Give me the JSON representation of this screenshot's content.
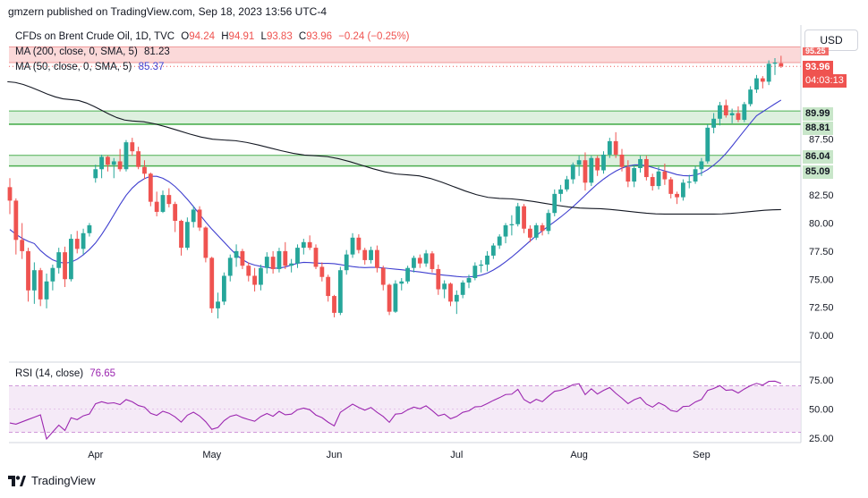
{
  "header": {
    "published": "gmzern published on TradingView.com, Sep 18, 2023 13:56 UTC-4"
  },
  "currency_button": "USD",
  "legend": {
    "symbol": "CFDs on Brent Crude Oil, 1D, TVC",
    "o_label": "O",
    "o": "94.24",
    "h_label": "H",
    "h": "94.91",
    "l_label": "L",
    "l": "93.83",
    "c_label": "C",
    "c": "93.96",
    "change": "−0.24 (−0.25%)",
    "ma200_label": "MA (200, close, 0, SMA, 5)",
    "ma200_value": "81.23",
    "ma50_label": "MA (50, close, 0, SMA, 5)",
    "ma50_value": "85.37",
    "rsi_label": "RSI (14, close)",
    "rsi_value": "76.65"
  },
  "price_tags": {
    "last": "93.96",
    "countdown": "04:03:13",
    "top_partial": "95.25",
    "zone1_top": "89.99",
    "zone1_bottom": "88.81",
    "zone2_top": "86.04",
    "zone2_bottom": "85.09"
  },
  "footer": {
    "brand": "TradingView"
  },
  "colors": {
    "up": "#26a69a",
    "down": "#ef5350",
    "ma50": "#3f3fcf",
    "ma200": "#131722",
    "rsi": "#9c27b0",
    "zone_fill": "#c8e6c9",
    "zone_line": "#4caf50",
    "resistance_fill": "#fbd9d9"
  },
  "chart_data": {
    "type": "candlestick",
    "y_ticks": [
      70.0,
      72.5,
      75.0,
      77.5,
      80.0,
      82.5,
      85.0,
      87.5
    ],
    "y_tick_labels": [
      "70.00",
      "72.50",
      "75.00",
      "77.50",
      "80.00",
      "82.50",
      "",
      "87.50"
    ],
    "x_ticks": [
      {
        "label": "Apr",
        "index": 14
      },
      {
        "label": "May",
        "index": 33
      },
      {
        "label": "Jun",
        "index": 53
      },
      {
        "label": "Jul",
        "index": 73
      },
      {
        "label": "Aug",
        "index": 93
      },
      {
        "label": "Sep",
        "index": 113
      }
    ],
    "rsi_ticks": [
      25.0,
      50.0,
      75.0
    ],
    "rsi_bands": [
      30,
      70
    ],
    "zones": [
      {
        "top": 89.99,
        "bottom": 88.81
      },
      {
        "top": 86.04,
        "bottom": 85.09
      }
    ],
    "resistance_zone": {
      "top": 95.7,
      "bottom": 94.3
    },
    "last_price": 93.96,
    "candles": [
      [
        83.2,
        84.0,
        80.8,
        82.0
      ],
      [
        82.0,
        82.2,
        77.2,
        78.5
      ],
      [
        78.5,
        80.0,
        76.8,
        77.5
      ],
      [
        77.5,
        77.8,
        73.0,
        74.0
      ],
      [
        74.0,
        76.5,
        72.8,
        75.8
      ],
      [
        75.8,
        76.0,
        72.6,
        73.2
      ],
      [
        73.2,
        75.5,
        72.4,
        74.8
      ],
      [
        74.8,
        76.3,
        74.0,
        76.0
      ],
      [
        76.0,
        77.8,
        75.5,
        77.4
      ],
      [
        77.4,
        77.9,
        74.3,
        75.0
      ],
      [
        75.0,
        79.0,
        74.8,
        78.6
      ],
      [
        78.6,
        79.3,
        77.3,
        77.7
      ],
      [
        77.7,
        79.5,
        77.2,
        79.1
      ],
      [
        79.1,
        80.0,
        78.8,
        79.8
      ],
      [
        84.0,
        85.2,
        83.6,
        84.8
      ],
      [
        84.8,
        86.1,
        84.0,
        85.9
      ],
      [
        85.9,
        86.0,
        84.6,
        85.2
      ],
      [
        85.2,
        85.8,
        84.0,
        85.5
      ],
      [
        85.5,
        86.6,
        84.6,
        84.8
      ],
      [
        84.8,
        87.4,
        84.6,
        87.2
      ],
      [
        87.2,
        87.6,
        86.0,
        86.4
      ],
      [
        86.4,
        86.8,
        84.8,
        85.0
      ],
      [
        85.0,
        85.6,
        83.9,
        84.4
      ],
      [
        84.4,
        84.5,
        81.5,
        81.9
      ],
      [
        81.9,
        82.8,
        80.6,
        81.0
      ],
      [
        81.0,
        82.9,
        80.9,
        82.5
      ],
      [
        82.5,
        83.1,
        81.4,
        81.7
      ],
      [
        81.7,
        81.9,
        79.2,
        80.2
      ],
      [
        80.2,
        80.3,
        77.1,
        77.8
      ],
      [
        77.8,
        80.5,
        77.6,
        80.1
      ],
      [
        80.1,
        81.5,
        79.6,
        81.2
      ],
      [
        81.2,
        81.5,
        79.3,
        79.6
      ],
      [
        79.6,
        79.7,
        76.5,
        76.9
      ],
      [
        76.9,
        77.0,
        72.0,
        72.4
      ],
      [
        72.4,
        73.8,
        71.5,
        73.0
      ],
      [
        73.0,
        75.6,
        72.7,
        75.3
      ],
      [
        75.3,
        77.2,
        74.8,
        76.9
      ],
      [
        76.9,
        78.1,
        76.1,
        77.5
      ],
      [
        77.5,
        77.7,
        75.9,
        76.2
      ],
      [
        76.2,
        76.5,
        74.8,
        75.3
      ],
      [
        75.3,
        76.0,
        73.9,
        74.5
      ],
      [
        74.5,
        76.3,
        74.0,
        76.0
      ],
      [
        76.0,
        77.4,
        75.5,
        77.0
      ],
      [
        77.0,
        77.5,
        75.5,
        75.9
      ],
      [
        75.9,
        77.8,
        75.6,
        77.5
      ],
      [
        77.5,
        78.3,
        75.9,
        76.2
      ],
      [
        76.2,
        76.8,
        75.6,
        76.4
      ],
      [
        76.4,
        78.1,
        76.0,
        77.8
      ],
      [
        77.8,
        78.6,
        77.2,
        78.3
      ],
      [
        78.3,
        78.9,
        77.6,
        77.8
      ],
      [
        77.8,
        78.1,
        75.9,
        76.1
      ],
      [
        76.1,
        76.5,
        74.8,
        75.2
      ],
      [
        75.2,
        75.4,
        73.0,
        73.5
      ],
      [
        73.5,
        73.6,
        71.6,
        72.0
      ],
      [
        72.0,
        76.1,
        71.8,
        75.8
      ],
      [
        75.8,
        77.6,
        75.4,
        77.2
      ],
      [
        77.2,
        79.1,
        76.9,
        78.7
      ],
      [
        78.7,
        79.0,
        77.3,
        77.6
      ],
      [
        77.6,
        77.8,
        76.3,
        76.7
      ],
      [
        76.7,
        77.9,
        76.4,
        77.6
      ],
      [
        77.6,
        78.0,
        75.6,
        76.0
      ],
      [
        76.0,
        76.2,
        74.0,
        74.5
      ],
      [
        74.5,
        74.6,
        71.8,
        72.1
      ],
      [
        72.1,
        74.9,
        72.0,
        74.6
      ],
      [
        74.6,
        75.1,
        74.0,
        74.8
      ],
      [
        74.8,
        76.2,
        74.6,
        76.0
      ],
      [
        76.0,
        77.1,
        75.6,
        76.9
      ],
      [
        76.9,
        77.2,
        76.0,
        76.4
      ],
      [
        76.4,
        77.6,
        76.1,
        77.3
      ],
      [
        77.3,
        77.5,
        75.6,
        75.9
      ],
      [
        75.9,
        76.3,
        73.6,
        74.1
      ],
      [
        74.1,
        74.9,
        73.3,
        74.6
      ],
      [
        74.6,
        74.7,
        72.6,
        73.0
      ],
      [
        73.0,
        74.0,
        71.9,
        73.6
      ],
      [
        73.6,
        74.9,
        73.3,
        74.7
      ],
      [
        74.7,
        75.4,
        74.2,
        75.1
      ],
      [
        75.1,
        76.5,
        74.9,
        76.2
      ],
      [
        76.2,
        76.7,
        75.6,
        76.3
      ],
      [
        76.3,
        77.5,
        75.7,
        77.1
      ],
      [
        77.1,
        78.2,
        76.8,
        78.0
      ],
      [
        78.0,
        79.0,
        77.7,
        78.8
      ],
      [
        78.8,
        80.0,
        78.2,
        79.8
      ],
      [
        79.8,
        80.7,
        78.9,
        79.9
      ],
      [
        79.9,
        81.8,
        79.7,
        81.5
      ],
      [
        81.5,
        81.7,
        79.1,
        79.5
      ],
      [
        79.5,
        79.8,
        78.3,
        78.7
      ],
      [
        78.7,
        80.0,
        78.5,
        79.8
      ],
      [
        79.8,
        80.0,
        78.9,
        79.3
      ],
      [
        79.3,
        81.2,
        79.0,
        80.9
      ],
      [
        80.9,
        83.0,
        80.6,
        82.6
      ],
      [
        82.6,
        83.4,
        81.9,
        83.0
      ],
      [
        83.0,
        84.2,
        82.8,
        83.9
      ],
      [
        83.9,
        85.4,
        83.5,
        85.2
      ],
      [
        85.2,
        86.0,
        84.2,
        85.6
      ],
      [
        85.6,
        86.3,
        82.9,
        83.6
      ],
      [
        83.6,
        86.0,
        83.3,
        85.8
      ],
      [
        85.8,
        86.0,
        84.2,
        84.7
      ],
      [
        84.7,
        86.4,
        84.4,
        86.1
      ],
      [
        86.1,
        87.6,
        85.8,
        87.3
      ],
      [
        87.3,
        88.1,
        85.8,
        86.1
      ],
      [
        86.1,
        86.6,
        84.6,
        85.0
      ],
      [
        85.0,
        85.6,
        83.2,
        83.7
      ],
      [
        83.7,
        85.2,
        83.2,
        84.9
      ],
      [
        84.9,
        86.0,
        84.5,
        85.7
      ],
      [
        85.7,
        86.0,
        83.8,
        84.1
      ],
      [
        84.1,
        84.4,
        82.9,
        83.3
      ],
      [
        83.3,
        85.0,
        83.0,
        84.6
      ],
      [
        84.6,
        85.3,
        83.4,
        83.9
      ],
      [
        83.9,
        84.1,
        82.2,
        82.6
      ],
      [
        82.6,
        82.8,
        81.7,
        82.3
      ],
      [
        82.3,
        83.9,
        82.0,
        83.6
      ],
      [
        83.6,
        84.3,
        83.1,
        83.7
      ],
      [
        83.7,
        85.1,
        83.5,
        84.8
      ],
      [
        84.8,
        85.8,
        84.2,
        85.5
      ],
      [
        85.5,
        88.8,
        85.3,
        88.5
      ],
      [
        88.5,
        89.8,
        88.0,
        89.3
      ],
      [
        89.3,
        90.8,
        88.7,
        90.5
      ],
      [
        90.5,
        91.0,
        89.4,
        89.6
      ],
      [
        89.6,
        90.2,
        88.9,
        89.8
      ],
      [
        89.8,
        90.4,
        89.0,
        89.2
      ],
      [
        89.2,
        90.8,
        89.0,
        90.6
      ],
      [
        90.6,
        92.2,
        90.4,
        91.9
      ],
      [
        91.9,
        93.2,
        91.6,
        92.9
      ],
      [
        92.9,
        93.1,
        92.0,
        92.6
      ],
      [
        92.6,
        94.5,
        92.3,
        94.2
      ],
      [
        94.2,
        94.7,
        93.2,
        94.3
      ],
      [
        94.24,
        94.91,
        93.83,
        93.96
      ]
    ]
  }
}
